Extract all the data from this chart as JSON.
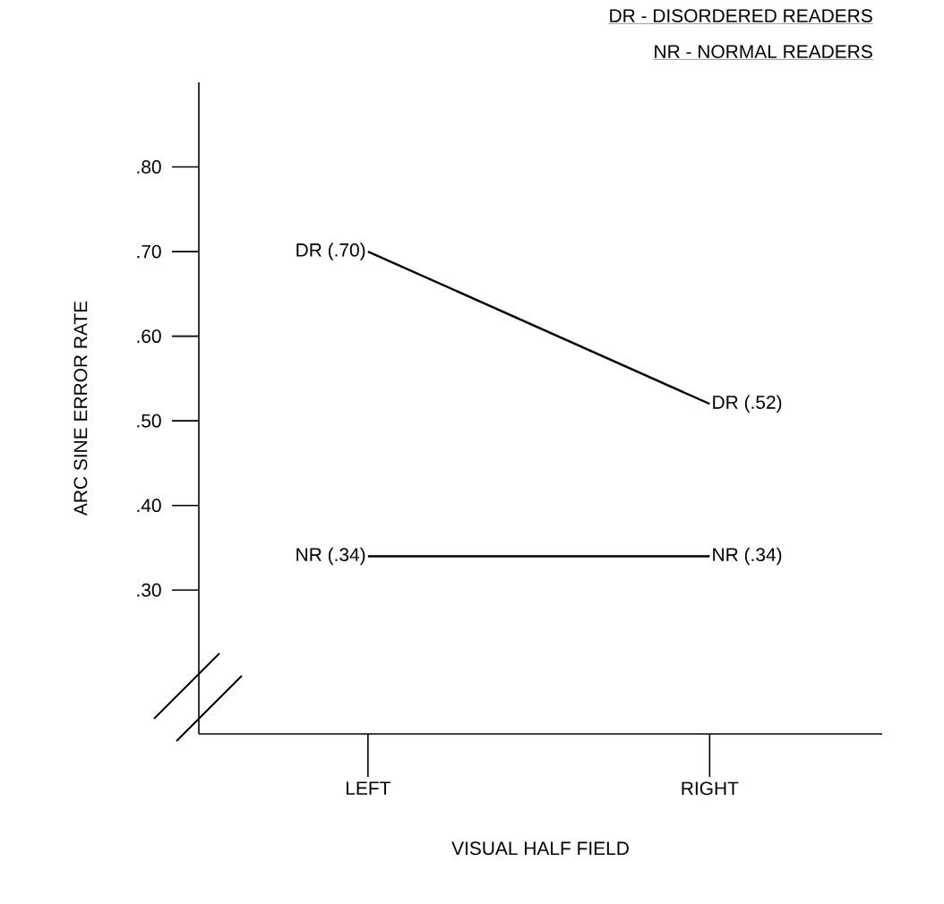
{
  "chart_data": {
    "type": "line",
    "xlabel": "VISUAL HALF FIELD",
    "ylabel": "ARC SINE ERROR RATE",
    "categories": [
      "LEFT",
      "RIGHT"
    ],
    "series": [
      {
        "color": "#000000",
        "values": [
          0.7,
          0.52
        ],
        "value_labels": [
          "DR (.70)",
          "DR (.52)"
        ]
      },
      {
        "color": "#000000",
        "values": [
          0.34,
          0.34
        ],
        "value_labels": [
          "NR (.34)",
          "NR (.34)"
        ]
      }
    ],
    "ylim": [
      0.13,
      0.9
    ],
    "yticks": [
      {
        "value": 0.3,
        "label": ".30"
      },
      {
        "value": 0.4,
        "label": ".40"
      },
      {
        "value": 0.5,
        "label": ".50"
      },
      {
        "value": 0.6,
        "label": ".60"
      },
      {
        "value": 0.7,
        "label": ".70"
      },
      {
        "value": 0.8,
        "label": ".80"
      }
    ],
    "marker": "none",
    "line_style": "solid",
    "annotations": [
      "DR - DISORDERED READERS",
      "NR - NORMAL READERS"
    ]
  }
}
